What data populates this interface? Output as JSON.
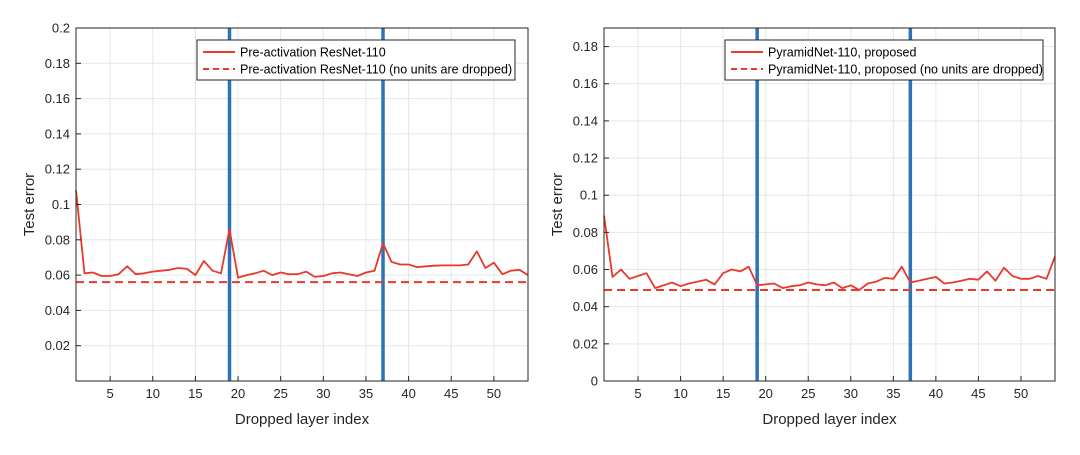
{
  "chart_data": [
    {
      "type": "line",
      "xlabel": "Dropped layer index",
      "ylabel": "Test error",
      "xlim": [
        1,
        54
      ],
      "ylim": [
        0.0,
        0.2
      ],
      "xticks": [
        5,
        10,
        15,
        20,
        25,
        30,
        35,
        40,
        45,
        50
      ],
      "xtick_labels": [
        "5",
        "10",
        "15",
        "20",
        "25",
        "30",
        "35",
        "40",
        "45",
        "50"
      ],
      "yticks": [
        0.02,
        0.04,
        0.06,
        0.08,
        0.1,
        0.12,
        0.14,
        0.16,
        0.18,
        0.2
      ],
      "ytick_labels": [
        "0.02",
        "0.04",
        "0.06",
        "0.08",
        "0.1",
        "0.12",
        "0.14",
        "0.16",
        "0.18",
        "0.2"
      ],
      "grid": true,
      "legend_position": "top-right",
      "vertical_lines": [
        19,
        37
      ],
      "series": [
        {
          "name": "Pre-activation ResNet-110",
          "style": "solid",
          "color": "#e8392b",
          "x": [
            1,
            2,
            3,
            4,
            5,
            6,
            7,
            8,
            9,
            10,
            11,
            12,
            13,
            14,
            15,
            16,
            17,
            18,
            19,
            20,
            21,
            22,
            23,
            24,
            25,
            26,
            27,
            28,
            29,
            30,
            31,
            32,
            33,
            34,
            35,
            36,
            37,
            38,
            39,
            40,
            41,
            42,
            43,
            44,
            45,
            46,
            47,
            48,
            49,
            50,
            51,
            52,
            53,
            54
          ],
          "values": [
            0.108,
            0.061,
            0.0615,
            0.0595,
            0.0595,
            0.0605,
            0.065,
            0.0605,
            0.061,
            0.062,
            0.0625,
            0.063,
            0.064,
            0.0635,
            0.06,
            0.068,
            0.0625,
            0.061,
            0.086,
            0.0585,
            0.06,
            0.061,
            0.0625,
            0.06,
            0.0615,
            0.0605,
            0.0605,
            0.062,
            0.059,
            0.0595,
            0.061,
            0.0615,
            0.0605,
            0.0595,
            0.0615,
            0.0625,
            0.078,
            0.0675,
            0.066,
            0.066,
            0.0645,
            0.065,
            0.0653,
            0.0655,
            0.0655,
            0.0655,
            0.066,
            0.0735,
            0.064,
            0.067,
            0.0605,
            0.0625,
            0.063,
            0.06
          ]
        },
        {
          "name": "Pre-activation ResNet-110 (no units are dropped)",
          "style": "dashed",
          "color": "#e8392b",
          "constant": 0.056
        }
      ]
    },
    {
      "type": "line",
      "xlabel": "Dropped layer index",
      "ylabel": "Test error",
      "xlim": [
        1,
        54
      ],
      "ylim": [
        0.0,
        0.19
      ],
      "xticks": [
        5,
        10,
        15,
        20,
        25,
        30,
        35,
        40,
        45,
        50
      ],
      "xtick_labels": [
        "5",
        "10",
        "15",
        "20",
        "25",
        "30",
        "35",
        "40",
        "45",
        "50"
      ],
      "yticks": [
        0,
        0.02,
        0.04,
        0.06,
        0.08,
        0.1,
        0.12,
        0.14,
        0.16,
        0.18
      ],
      "ytick_labels": [
        "0",
        "0.02",
        "0.04",
        "0.06",
        "0.08",
        "0.1",
        "0.12",
        "0.14",
        "0.16",
        "0.18"
      ],
      "grid": true,
      "legend_position": "top-right",
      "vertical_lines": [
        19,
        37
      ],
      "series": [
        {
          "name": "PyramidNet-110, proposed",
          "style": "solid",
          "color": "#e8392b",
          "x": [
            1,
            2,
            3,
            4,
            5,
            6,
            7,
            8,
            9,
            10,
            11,
            12,
            13,
            14,
            15,
            16,
            17,
            18,
            19,
            20,
            21,
            22,
            23,
            24,
            25,
            26,
            27,
            28,
            29,
            30,
            31,
            32,
            33,
            34,
            35,
            36,
            37,
            38,
            39,
            40,
            41,
            42,
            43,
            44,
            45,
            46,
            47,
            48,
            49,
            50,
            51,
            52,
            53,
            54
          ],
          "values": [
            0.089,
            0.056,
            0.06,
            0.055,
            0.0565,
            0.058,
            0.05,
            0.0515,
            0.053,
            0.051,
            0.0525,
            0.0535,
            0.0545,
            0.052,
            0.058,
            0.06,
            0.059,
            0.0615,
            0.0515,
            0.052,
            0.0525,
            0.05,
            0.051,
            0.0515,
            0.053,
            0.052,
            0.0515,
            0.053,
            0.05,
            0.0515,
            0.049,
            0.0525,
            0.0535,
            0.0555,
            0.055,
            0.0615,
            0.053,
            0.054,
            0.055,
            0.056,
            0.0525,
            0.053,
            0.054,
            0.055,
            0.0545,
            0.059,
            0.054,
            0.061,
            0.0565,
            0.055,
            0.055,
            0.0565,
            0.055,
            0.067
          ]
        },
        {
          "name": "PyramidNet-110, proposed (no units are dropped)",
          "style": "dashed",
          "color": "#e8392b",
          "constant": 0.049
        }
      ]
    }
  ],
  "colors": {
    "series": "#e8392b",
    "vertical_line": "#2e73b8",
    "grid": "#e6e6e6",
    "axis": "#262626"
  }
}
